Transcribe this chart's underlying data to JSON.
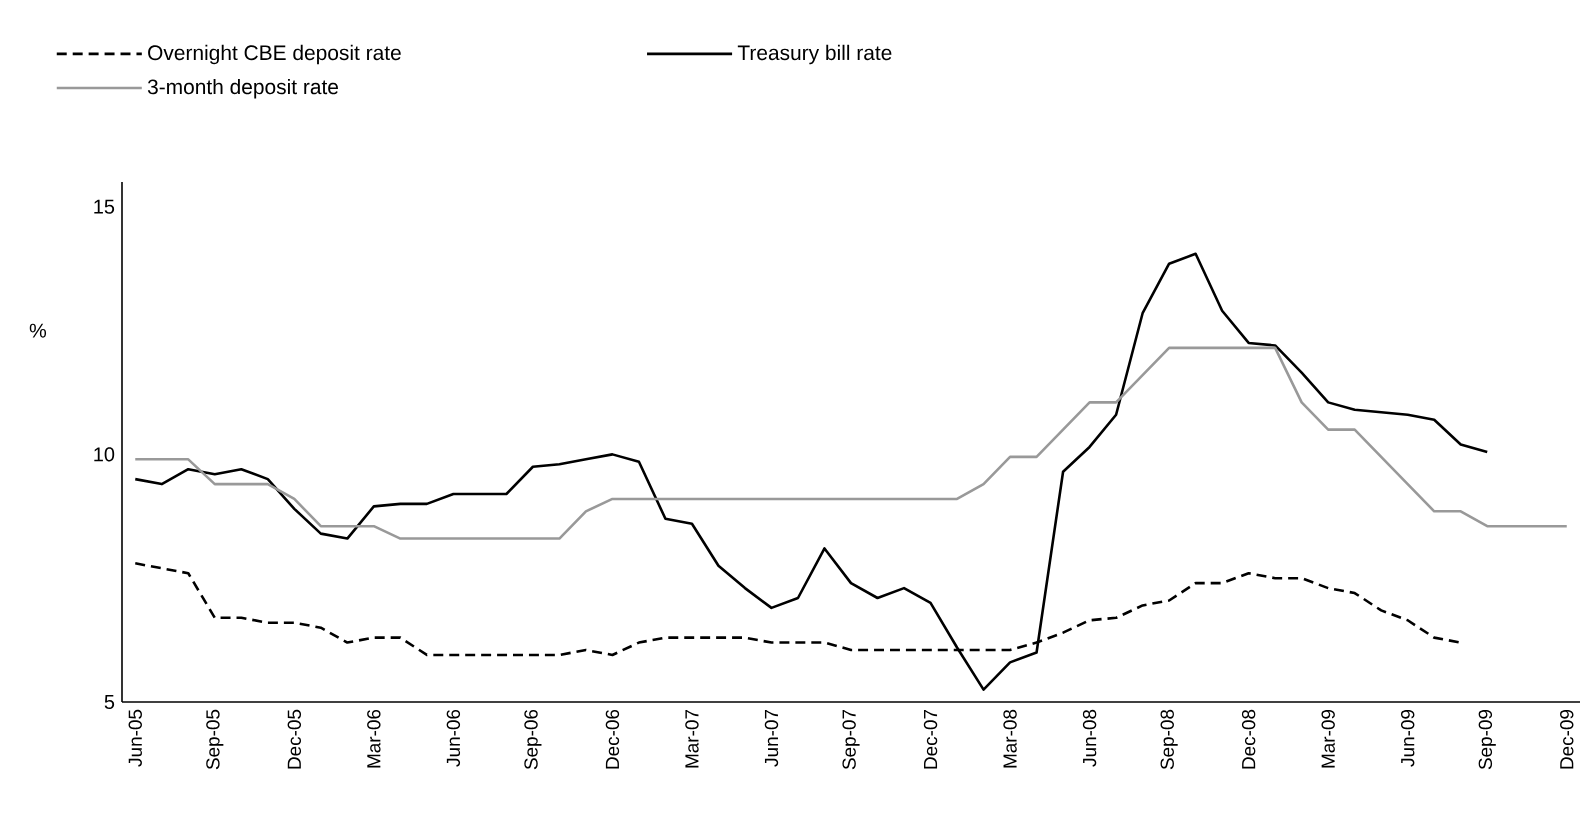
{
  "chart_data": {
    "type": "line",
    "categories": [
      "Jun-05",
      null,
      null,
      "Sep-05",
      null,
      null,
      "Dec-05",
      null,
      null,
      "Mar-06",
      null,
      null,
      "Jun-06",
      null,
      null,
      "Sep-06",
      null,
      null,
      "Dec-06",
      null,
      null,
      "Mar-07",
      null,
      null,
      "Jun-07",
      null,
      null,
      "Sep-07",
      null,
      null,
      "Dec-07",
      null,
      null,
      "Mar-08",
      null,
      null,
      "Jun-08",
      null,
      null,
      "Sep-08",
      null,
      null,
      "Dec-08",
      null,
      null,
      "Mar-09",
      null,
      null,
      "Jun-09",
      null,
      null,
      "Sep-09",
      null,
      null,
      "Dec-09"
    ],
    "ylabel": "%",
    "ylim": [
      5,
      15.5
    ],
    "yticks": [
      5,
      10,
      15
    ],
    "legend": "top",
    "marker": "none",
    "series": [
      {
        "name": "Overnight CBE deposit rate",
        "color": "#000000",
        "line_style": "dashed",
        "values": [
          7.8,
          7.7,
          7.6,
          6.7,
          6.7,
          6.6,
          6.6,
          6.5,
          6.2,
          6.3,
          6.3,
          5.95,
          5.95,
          5.95,
          5.95,
          5.95,
          5.95,
          6.05,
          5.95,
          6.2,
          6.3,
          6.3,
          6.3,
          6.3,
          6.2,
          6.2,
          6.2,
          6.05,
          6.05,
          6.05,
          6.05,
          6.05,
          6.05,
          6.05,
          6.2,
          6.4,
          6.65,
          6.7,
          6.95,
          7.05,
          7.4,
          7.4,
          7.6,
          7.5,
          7.5,
          7.3,
          7.2,
          6.85,
          6.65,
          6.3,
          6.2,
          null,
          null,
          null,
          null
        ]
      },
      {
        "name": "Treasury bill rate",
        "color": "#000000",
        "line_style": "solid",
        "values": [
          9.5,
          9.4,
          9.7,
          9.6,
          9.7,
          9.5,
          8.9,
          8.4,
          8.3,
          8.95,
          9.0,
          9.0,
          9.2,
          9.2,
          9.2,
          9.75,
          9.8,
          9.9,
          10.0,
          9.85,
          8.7,
          8.6,
          7.75,
          7.3,
          6.9,
          7.1,
          8.1,
          7.4,
          7.1,
          7.3,
          7.0,
          6.1,
          5.25,
          5.8,
          6.0,
          9.65,
          10.15,
          10.8,
          12.85,
          13.85,
          14.05,
          12.9,
          12.25,
          12.2,
          11.65,
          11.05,
          10.9,
          10.85,
          10.8,
          10.7,
          10.2,
          10.05,
          null,
          null,
          null
        ]
      },
      {
        "name": "3-month deposit rate",
        "color": "#999999",
        "line_style": "solid",
        "values": [
          9.9,
          9.9,
          9.9,
          9.4,
          9.4,
          9.4,
          9.1,
          8.55,
          8.55,
          8.55,
          8.3,
          8.3,
          8.3,
          8.3,
          8.3,
          8.3,
          8.3,
          8.85,
          9.1,
          9.1,
          9.1,
          9.1,
          9.1,
          9.1,
          9.1,
          9.1,
          9.1,
          9.1,
          9.1,
          9.1,
          9.1,
          9.1,
          9.4,
          9.95,
          9.95,
          10.5,
          11.05,
          11.05,
          11.6,
          12.15,
          12.15,
          12.15,
          12.15,
          12.15,
          11.05,
          10.5,
          10.5,
          9.95,
          9.4,
          8.85,
          8.85,
          8.55,
          8.55,
          8.55,
          8.55
        ]
      }
    ]
  }
}
